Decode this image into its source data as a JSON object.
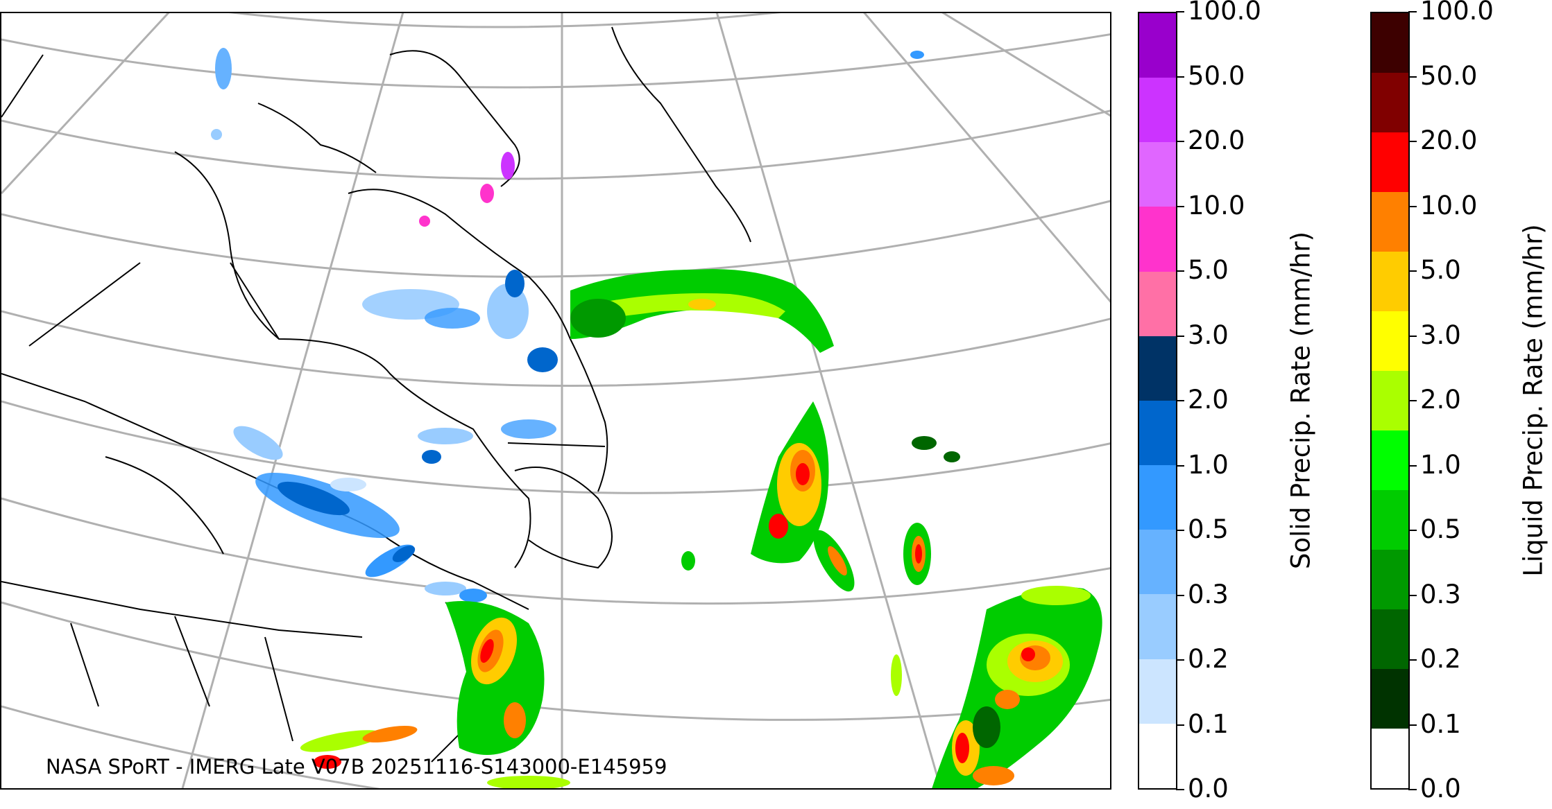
{
  "map": {
    "credit": "NASA SPoRT - IMERG Late V07B 20251116-S143000-E145959",
    "colors": {
      "coastline": "#000000",
      "graticule": "#b0b0b0",
      "background": "#ffffff"
    },
    "region": "Northeastern North America, Greenland and western North Atlantic"
  },
  "colorbars": [
    {
      "id": "solid",
      "title": "Solid Precip. Rate (mm/hr)",
      "tick_labels": [
        "0.0",
        "0.1",
        "0.2",
        "0.3",
        "0.5",
        "1.0",
        "2.0",
        "3.0",
        "5.0",
        "10.0",
        "20.0",
        "50.0",
        "100.0"
      ],
      "colors": [
        "#ffffff",
        "#cce5ff",
        "#99ccff",
        "#66b2ff",
        "#3399ff",
        "#0066cc",
        "#003366",
        "#ff70a6",
        "#ff33cc",
        "#e066ff",
        "#cc33ff",
        "#9900cc"
      ]
    },
    {
      "id": "liquid",
      "title": "Liquid Precip. Rate (mm/hr)",
      "tick_labels": [
        "0.0",
        "0.1",
        "0.2",
        "0.3",
        "0.5",
        "1.0",
        "2.0",
        "3.0",
        "5.0",
        "10.0",
        "20.0",
        "50.0",
        "100.0"
      ],
      "colors": [
        "#ffffff",
        "#003300",
        "#006600",
        "#009900",
        "#00cc00",
        "#00ff00",
        "#aaff00",
        "#ffff00",
        "#ffcc00",
        "#ff8000",
        "#ff0000",
        "#800000",
        "#3d0000"
      ]
    }
  ]
}
